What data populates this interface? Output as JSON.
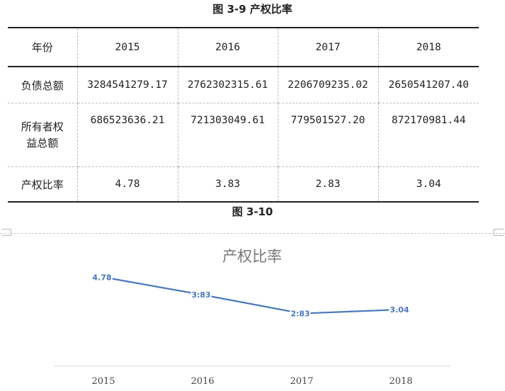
{
  "table_caption": "图 3-9 产权比率",
  "figure_caption": "图 3-10",
  "table": {
    "headers": [
      "年份",
      "2015",
      "2016",
      "2017",
      "2018"
    ],
    "rows": [
      {
        "label": "负债总额",
        "values": [
          "3284541279.17",
          "2762302315.61",
          "2206709235.02",
          "2650541207.40"
        ]
      },
      {
        "label_line1": "所有者权",
        "label_line2": "益总额",
        "values": [
          "686523636.21",
          "721303049.61",
          "779501527.20",
          "872170981.44"
        ]
      },
      {
        "label": "产权比率",
        "values": [
          "4.78",
          "3.83",
          "2.83",
          "3.04"
        ]
      }
    ]
  },
  "chart_data": {
    "type": "line",
    "title": "产权比率",
    "categories": [
      "2015",
      "2016",
      "2017",
      "2018"
    ],
    "series": [
      {
        "values": [
          4.78,
          3.83,
          2.83,
          3.04
        ],
        "labels": [
          "4.78",
          "3.83",
          "2.83",
          "3.04"
        ],
        "color": "#4a78bb"
      }
    ],
    "ylim": [
      0,
      5.55
    ],
    "grid": false,
    "legend": "none",
    "axis_color": "#d9d9d9"
  }
}
